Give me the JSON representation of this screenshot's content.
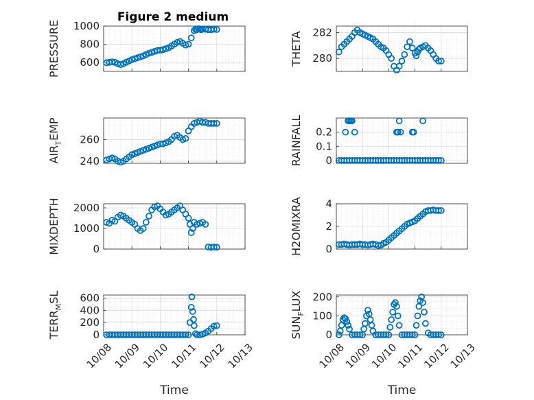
{
  "figure": {
    "title": "Figure 2 medium",
    "marker_color": "#0072BD"
  },
  "chart_data": [
    {
      "type": "scatter",
      "ylabel_main": "PRESSURE",
      "ylabel_sub": "",
      "ylim": [
        500,
        1000
      ],
      "yticks": [
        600,
        800,
        1000
      ],
      "ytick_labels": [
        "600",
        "800",
        "1000"
      ],
      "xlim": [
        0,
        5
      ],
      "show_xticklabels": false,
      "xlabel": "",
      "x": [
        0.1,
        0.2,
        0.3,
        0.4,
        0.5,
        0.6,
        0.7,
        0.8,
        0.9,
        1.0,
        1.1,
        1.2,
        1.3,
        1.4,
        1.5,
        1.6,
        1.7,
        1.8,
        1.9,
        2.0,
        2.1,
        2.2,
        2.3,
        2.4,
        2.5,
        2.6,
        2.7,
        2.8,
        2.9,
        3.0,
        3.1,
        3.2,
        3.25,
        3.3,
        3.35,
        3.4,
        3.45,
        3.5,
        3.6,
        3.7,
        3.8,
        3.9,
        4.0
      ],
      "y": [
        595,
        600,
        605,
        600,
        585,
        575,
        585,
        600,
        615,
        630,
        640,
        650,
        660,
        670,
        685,
        700,
        710,
        720,
        730,
        735,
        740,
        750,
        760,
        780,
        800,
        820,
        830,
        810,
        790,
        800,
        870,
        950,
        965,
        960,
        970,
        965,
        960,
        965,
        965,
        960,
        960,
        965,
        962
      ]
    },
    {
      "type": "scatter",
      "ylabel_main": "THETA",
      "ylabel_sub": "",
      "ylim": [
        279,
        282.5
      ],
      "yticks": [
        280,
        282
      ],
      "ytick_labels": [
        "280",
        "282"
      ],
      "xlim": [
        0,
        5
      ],
      "show_xticklabels": false,
      "xlabel": "",
      "x": [
        0.1,
        0.2,
        0.3,
        0.4,
        0.5,
        0.6,
        0.7,
        0.8,
        0.9,
        1.0,
        1.1,
        1.2,
        1.3,
        1.4,
        1.5,
        1.6,
        1.7,
        1.8,
        1.9,
        2.0,
        2.1,
        2.2,
        2.3,
        2.4,
        2.5,
        2.6,
        2.7,
        2.8,
        2.9,
        3.0,
        3.05,
        3.1,
        3.15,
        3.2,
        3.3,
        3.4,
        3.5,
        3.6,
        3.7,
        3.8,
        3.9,
        4.0
      ],
      "y": [
        280.5,
        280.9,
        281.1,
        281.3,
        281.5,
        281.7,
        282.0,
        282.2,
        282.0,
        281.9,
        281.8,
        281.7,
        281.6,
        281.5,
        281.3,
        281.1,
        280.9,
        280.8,
        280.6,
        280.3,
        280.0,
        279.4,
        279.1,
        279.4,
        279.8,
        280.3,
        280.9,
        281.3,
        280.8,
        280.4,
        280.2,
        280.5,
        280.7,
        280.8,
        280.9,
        281.0,
        280.8,
        280.6,
        280.3,
        280.0,
        279.8,
        279.8
      ]
    },
    {
      "type": "scatter",
      "ylabel_main": "AIR",
      "ylabel_sub": "TEMP",
      "ylim": [
        238,
        280
      ],
      "yticks": [
        240,
        260
      ],
      "ytick_labels": [
        "240",
        "260"
      ],
      "xlim": [
        0,
        5
      ],
      "show_xticklabels": false,
      "xlabel": "",
      "x": [
        0.1,
        0.2,
        0.3,
        0.4,
        0.5,
        0.6,
        0.7,
        0.8,
        0.9,
        1.0,
        1.1,
        1.2,
        1.3,
        1.4,
        1.5,
        1.6,
        1.7,
        1.8,
        1.9,
        2.0,
        2.1,
        2.2,
        2.3,
        2.4,
        2.5,
        2.6,
        2.7,
        2.8,
        2.9,
        3.0,
        3.1,
        3.2,
        3.3,
        3.4,
        3.5,
        3.6,
        3.7,
        3.8,
        3.9,
        4.0
      ],
      "y": [
        241,
        242,
        243,
        242,
        240,
        239,
        240,
        242,
        244,
        246,
        247,
        248,
        249,
        250,
        251,
        252,
        253,
        254,
        255,
        256,
        256,
        257,
        258,
        260,
        263,
        264,
        262,
        260,
        261,
        268,
        272,
        275,
        276,
        277,
        276,
        276,
        275,
        275,
        275,
        275
      ]
    },
    {
      "type": "scatter",
      "ylabel_main": "RAINFALL",
      "ylabel_sub": "",
      "ylim": [
        -0.02,
        0.3
      ],
      "yticks": [
        0,
        0.1,
        0.2
      ],
      "ytick_labels": [
        "0",
        "0.1",
        "0.2"
      ],
      "xlim": [
        0,
        5
      ],
      "show_xticklabels": false,
      "xlabel": "",
      "x": [
        0.1,
        0.2,
        0.3,
        0.4,
        0.5,
        0.6,
        0.7,
        0.8,
        0.9,
        1.0,
        1.1,
        1.2,
        1.3,
        1.4,
        1.5,
        1.6,
        1.7,
        1.8,
        1.9,
        2.0,
        2.1,
        2.2,
        2.3,
        2.4,
        2.5,
        2.6,
        2.7,
        2.8,
        2.9,
        3.0,
        3.1,
        3.2,
        3.3,
        3.4,
        3.5,
        3.6,
        3.7,
        3.8,
        3.9,
        4.0,
        0.35,
        0.45,
        0.5,
        0.55,
        0.6,
        0.7,
        2.3,
        2.35,
        2.4,
        2.45,
        2.9,
        2.95,
        3.3
      ],
      "y": [
        0,
        0,
        0,
        0,
        0,
        0,
        0,
        0,
        0,
        0,
        0,
        0,
        0,
        0,
        0,
        0,
        0,
        0,
        0,
        0,
        0,
        0,
        0,
        0,
        0,
        0,
        0,
        0,
        0,
        0,
        0,
        0,
        0,
        0,
        0,
        0,
        0,
        0,
        0,
        0,
        0.2,
        0.28,
        0.28,
        0.28,
        0.28,
        0.2,
        0.2,
        0.2,
        0.28,
        0.2,
        0.2,
        0.2,
        0.28
      ]
    },
    {
      "type": "scatter",
      "ylabel_main": "MIXDEPTH",
      "ylabel_sub": "",
      "ylim": [
        0,
        2200
      ],
      "yticks": [
        0,
        1000,
        2000
      ],
      "ytick_labels": [
        "0",
        "1000",
        "2000"
      ],
      "xlim": [
        0,
        5
      ],
      "show_xticklabels": false,
      "xlabel": "",
      "x": [
        0.1,
        0.2,
        0.3,
        0.4,
        0.5,
        0.6,
        0.7,
        0.8,
        0.9,
        1.0,
        1.1,
        1.2,
        1.3,
        1.4,
        1.5,
        1.6,
        1.7,
        1.8,
        1.9,
        2.0,
        2.1,
        2.2,
        2.3,
        2.4,
        2.5,
        2.6,
        2.7,
        2.8,
        2.9,
        3.0,
        3.05,
        3.1,
        3.15,
        3.2,
        3.3,
        3.4,
        3.5,
        3.6,
        3.7,
        3.8,
        3.9,
        4.0
      ],
      "y": [
        1300,
        1250,
        1400,
        1350,
        1550,
        1650,
        1600,
        1500,
        1400,
        1300,
        1200,
        1000,
        900,
        1000,
        1300,
        1600,
        1900,
        2050,
        2100,
        1950,
        1800,
        1650,
        1700,
        1800,
        1900,
        2000,
        2100,
        1900,
        1700,
        1500,
        1200,
        800,
        1000,
        1300,
        1200,
        1250,
        1300,
        1200,
        100,
        80,
        100,
        90
      ]
    },
    {
      "type": "scatter",
      "ylabel_main": "H2OMIXRA",
      "ylabel_sub": "",
      "ylim": [
        0,
        4
      ],
      "yticks": [
        0,
        2,
        4
      ],
      "ytick_labels": [
        "0",
        "2",
        "4"
      ],
      "xlim": [
        0,
        5
      ],
      "show_xticklabels": false,
      "xlabel": "",
      "x": [
        0.1,
        0.2,
        0.3,
        0.4,
        0.5,
        0.6,
        0.7,
        0.8,
        0.9,
        1.0,
        1.1,
        1.2,
        1.3,
        1.4,
        1.5,
        1.6,
        1.7,
        1.8,
        1.9,
        2.0,
        2.1,
        2.2,
        2.3,
        2.4,
        2.5,
        2.6,
        2.7,
        2.8,
        2.9,
        3.0,
        3.1,
        3.2,
        3.3,
        3.4,
        3.5,
        3.6,
        3.7,
        3.8,
        3.9,
        4.0
      ],
      "y": [
        0.4,
        0.4,
        0.45,
        0.4,
        0.35,
        0.4,
        0.4,
        0.4,
        0.45,
        0.4,
        0.4,
        0.35,
        0.4,
        0.45,
        0.4,
        0.3,
        0.35,
        0.5,
        0.6,
        0.8,
        1.0,
        1.2,
        1.4,
        1.6,
        1.8,
        2.0,
        2.2,
        2.3,
        2.4,
        2.5,
        2.7,
        2.9,
        3.1,
        3.3,
        3.4,
        3.4,
        3.45,
        3.4,
        3.4,
        3.4
      ]
    },
    {
      "type": "scatter",
      "ylabel_main": "TERR",
      "ylabel_sub": "MSL",
      "ylim": [
        0,
        650
      ],
      "yticks": [
        0,
        200,
        400,
        600
      ],
      "ytick_labels": [
        "0",
        "200",
        "400",
        "600"
      ],
      "xlim": [
        0,
        5
      ],
      "show_xticklabels": true,
      "xlabel": "Time",
      "xticks": [
        0,
        1,
        2,
        3,
        4,
        5
      ],
      "xtick_labels": [
        "10/08",
        "10/09",
        "10/10",
        "10/11",
        "10/12",
        "10/13"
      ],
      "x": [
        0.1,
        0.2,
        0.3,
        0.4,
        0.5,
        0.6,
        0.7,
        0.8,
        0.9,
        1.0,
        1.1,
        1.2,
        1.3,
        1.4,
        1.5,
        1.6,
        1.7,
        1.8,
        1.9,
        2.0,
        2.1,
        2.2,
        2.3,
        2.4,
        2.5,
        2.6,
        2.7,
        2.8,
        2.9,
        3.0,
        3.05,
        3.1,
        3.12,
        3.15,
        3.18,
        3.2,
        3.25,
        3.3,
        3.4,
        3.5,
        3.6,
        3.7,
        3.8,
        3.9,
        4.0
      ],
      "y": [
        0,
        0,
        0,
        0,
        0,
        0,
        0,
        0,
        0,
        0,
        0,
        0,
        0,
        0,
        0,
        0,
        0,
        0,
        0,
        0,
        0,
        0,
        0,
        0,
        0,
        0,
        0,
        0,
        0,
        0,
        200,
        450,
        620,
        380,
        250,
        150,
        20,
        0,
        0,
        10,
        30,
        60,
        100,
        140,
        150
      ]
    },
    {
      "type": "scatter",
      "ylabel_main": "SUN",
      "ylabel_sub": "FLUX",
      "ylim": [
        0,
        210
      ],
      "yticks": [
        0,
        100,
        200
      ],
      "ytick_labels": [
        "0",
        "100",
        "200"
      ],
      "xlim": [
        0,
        5
      ],
      "show_xticklabels": true,
      "xlabel": "Time",
      "xticks": [
        0,
        1,
        2,
        3,
        4,
        5
      ],
      "xtick_labels": [
        "10/08",
        "10/09",
        "10/10",
        "10/11",
        "10/12",
        "10/13"
      ],
      "x": [
        0.1,
        0.15,
        0.2,
        0.25,
        0.3,
        0.35,
        0.4,
        0.45,
        0.5,
        0.6,
        0.7,
        0.8,
        0.9,
        1.0,
        1.05,
        1.1,
        1.15,
        1.2,
        1.25,
        1.3,
        1.35,
        1.4,
        1.5,
        1.6,
        1.7,
        1.8,
        1.9,
        2.0,
        2.05,
        2.1,
        2.15,
        2.2,
        2.25,
        2.3,
        2.35,
        2.4,
        2.5,
        2.6,
        2.7,
        2.8,
        2.9,
        3.0,
        3.05,
        3.1,
        3.15,
        3.2,
        3.25,
        3.3,
        3.35,
        3.4,
        3.5,
        3.6,
        3.7,
        3.8,
        3.9,
        4.0
      ],
      "y": [
        0,
        20,
        50,
        80,
        90,
        85,
        70,
        50,
        30,
        0,
        0,
        0,
        0,
        0,
        30,
        60,
        100,
        130,
        110,
        80,
        50,
        20,
        0,
        0,
        0,
        0,
        0,
        0,
        40,
        80,
        120,
        160,
        170,
        150,
        100,
        50,
        0,
        0,
        0,
        0,
        0,
        0,
        50,
        100,
        150,
        180,
        200,
        170,
        120,
        60,
        10,
        0,
        0,
        0,
        0,
        0
      ]
    }
  ]
}
